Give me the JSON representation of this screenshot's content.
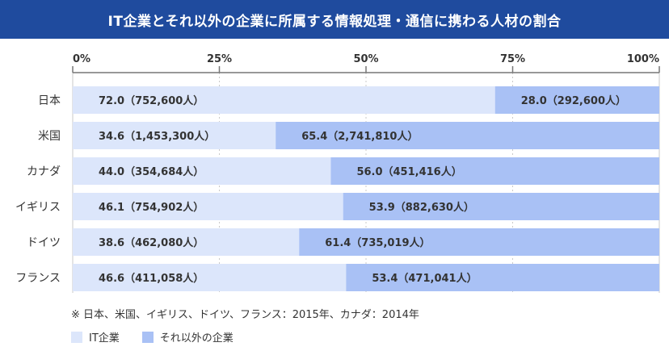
{
  "title": "IT企業とそれ以外の企業に所属する情報処理・通信に携わる人材の割合",
  "note": "※ 日本、米国、イギリス、ドイツ、フランス：2015年、カナダ：2014年",
  "colors": {
    "title_bg": "#1f4b9e",
    "it": "#dce6fb",
    "other": "#a9c1f5",
    "text": "#333333",
    "axis": "#777777",
    "grid": "#c9c9c9"
  },
  "chart_data": {
    "type": "bar",
    "orientation": "horizontal",
    "stacked": true,
    "xlim": [
      0,
      100
    ],
    "x_ticks": [
      0,
      25,
      50,
      75,
      100
    ],
    "x_tick_labels": [
      "0%",
      "25%",
      "50%",
      "75%",
      "100%"
    ],
    "categories": [
      "日本",
      "米国",
      "カナダ",
      "イギリス",
      "ドイツ",
      "フランス"
    ],
    "series": [
      {
        "name": "IT企業",
        "values": [
          72.0,
          34.6,
          44.0,
          46.1,
          38.6,
          46.6
        ],
        "labels": [
          "72.0（752,600人）",
          "34.6（1,453,300人）",
          "44.0（354,684人）",
          "46.1（754,902人）",
          "38.6（462,080人）",
          "46.6（411,058人）"
        ]
      },
      {
        "name": "それ以外の企業",
        "values": [
          28.0,
          65.4,
          56.0,
          53.9,
          61.4,
          53.4
        ],
        "labels": [
          "28.0（292,600人）",
          "65.4（2,741,810人）",
          "56.0（451,416人）",
          "53.9（882,630人）",
          "61.4（735,019人）",
          "53.4（471,041人）"
        ]
      }
    ],
    "legend_position": "bottom-left",
    "grid": true
  }
}
